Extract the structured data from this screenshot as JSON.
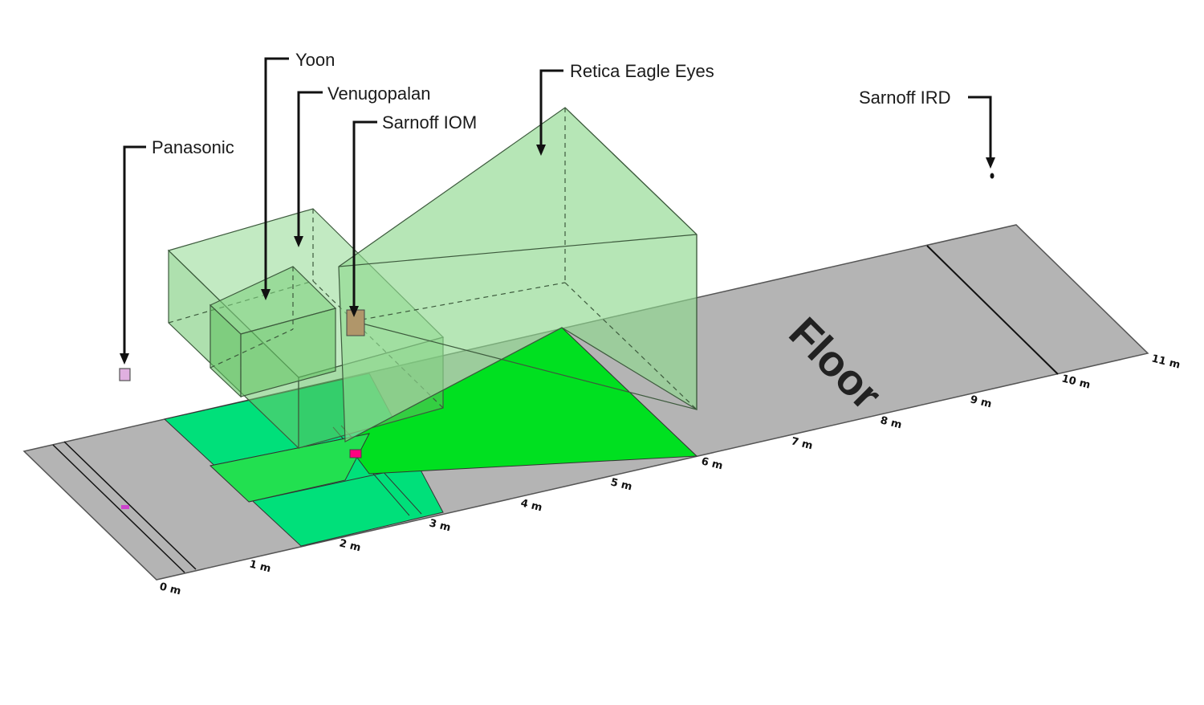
{
  "labels": {
    "yoon": "Yoon",
    "venugopalan": "Venugopalan",
    "sarnoff_iom": "Sarnoff IOM",
    "panasonic": "Panasonic",
    "retica": "Retica Eagle Eyes",
    "sarnoff_ird": "Sarnoff IRD"
  },
  "floor": {
    "label": "Floor",
    "ruler": [
      "0 m",
      "1 m",
      "2 m",
      "3 m",
      "4 m",
      "5 m",
      "6 m",
      "7 m",
      "8 m",
      "9 m",
      "10 m",
      "11 m"
    ]
  },
  "colors": {
    "floor": "#b4b4b4",
    "volume": "#8fd88f",
    "bright_green": "#00e000",
    "mint_green": "#00e07a",
    "marker": "#ff0080"
  }
}
